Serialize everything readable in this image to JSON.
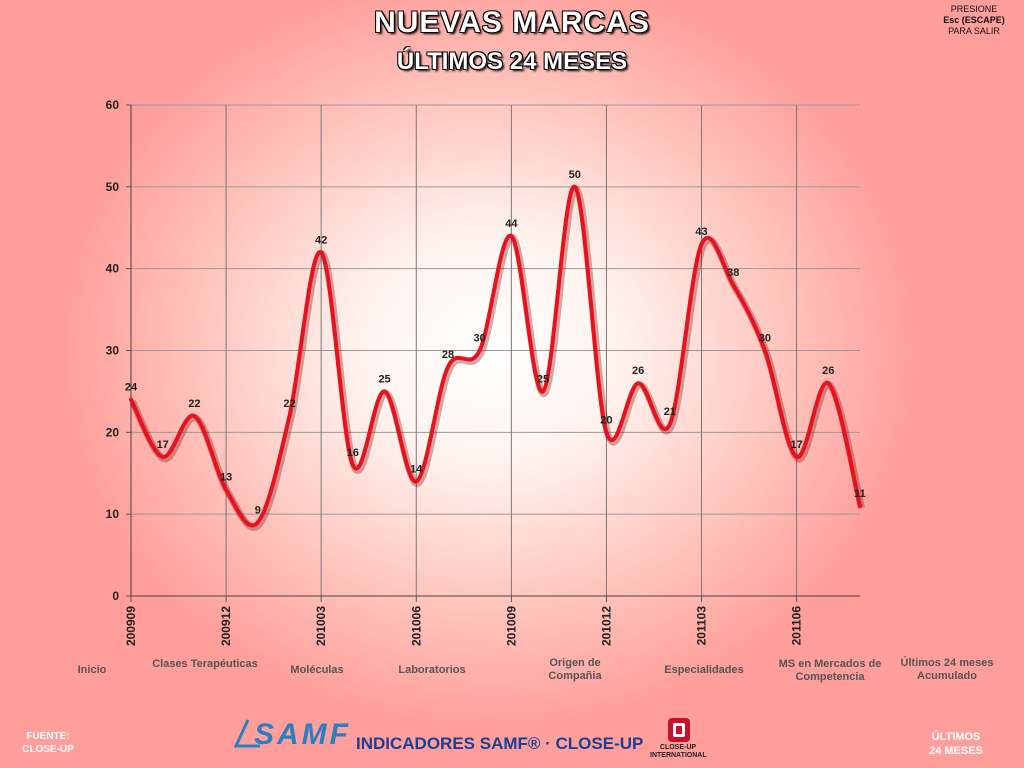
{
  "header": {
    "title": "NUEVAS MARCAS",
    "subtitle": "ÚLTIMOS 24 MESES"
  },
  "escape_hint": {
    "line1": "PRESIONE",
    "line2": "Esc (ESCAPE)",
    "line3": "PARA SALIR"
  },
  "chart_data": {
    "type": "line",
    "smooth": true,
    "x": [
      "200909",
      "200910",
      "200911",
      "200912",
      "201001",
      "201002",
      "201003",
      "201004",
      "201005",
      "201006",
      "201007",
      "201008",
      "201009",
      "201010",
      "201011",
      "201012",
      "201101",
      "201102",
      "201103",
      "201104",
      "201105",
      "201106",
      "201107",
      "201108"
    ],
    "tick_labels_shown": [
      "200909",
      "200912",
      "201003",
      "201006",
      "201009",
      "201012",
      "201103",
      "201106"
    ],
    "series": [
      {
        "values": [
          24,
          17,
          22,
          13,
          9,
          22,
          42,
          16,
          25,
          14,
          28,
          30,
          44,
          25,
          50,
          20,
          26,
          21,
          43,
          38,
          30,
          17,
          26,
          11
        ],
        "color": "#e8121e"
      }
    ],
    "ylim": [
      0,
      60
    ],
    "yticks": [
      0,
      10,
      20,
      30,
      40,
      50,
      60
    ],
    "data_labels": true,
    "grid": true,
    "legend": "none"
  },
  "nav": [
    {
      "label": "Inicio"
    },
    {
      "label": "Clases Terapéuticas"
    },
    {
      "label": "Moléculas"
    },
    {
      "label": "Laboratorios"
    },
    {
      "label": "Origen de Compañia"
    },
    {
      "label": "Especialidades"
    },
    {
      "label": "MS en Mercados de Competencia"
    },
    {
      "label": "Últimos 24 meses Acumulado"
    }
  ],
  "footer": {
    "source_line1": "FUENTE:",
    "source_line2": "CLOSE-UP",
    "logo_samf": "SAMF",
    "indicators_text": "INDICADORES SAMF® · CLOSE-UP",
    "logo_closeup_line1": "CLOSE-UP",
    "logo_closeup_line2": "INTERNATIONAL",
    "right_line1": "ÚLTIMOS",
    "right_line2": "24 MESES"
  },
  "colors": {
    "series_line": "#e8121e",
    "background_edge": "#ff9e9a",
    "brand_blue": "#1a3f99"
  }
}
